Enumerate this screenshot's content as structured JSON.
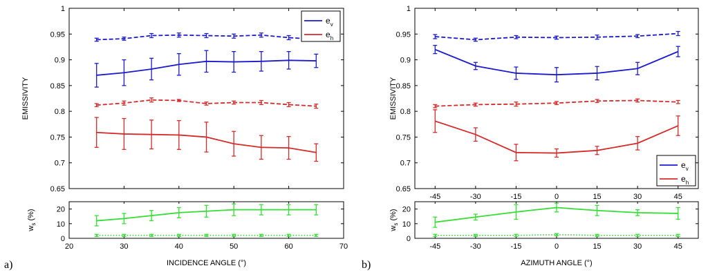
{
  "panel_labels": [
    "a)",
    "b)"
  ],
  "colors": {
    "ev": "#1a1acc",
    "eh": "#d42a2a",
    "ws": "#33dd33",
    "axis": "#000000"
  },
  "chart_data": [
    {
      "type": "line",
      "panel": "a",
      "xlabel": "INCIDENCE ANGLE (°)",
      "ylabel": "EMISSIVITY",
      "xlim": [
        20,
        70
      ],
      "ylim": [
        0.65,
        1
      ],
      "x_ticks": [
        20,
        30,
        40,
        50,
        60,
        70
      ],
      "x_tick_labels": [
        "20",
        "30",
        "40",
        "50",
        "60",
        "70"
      ],
      "y_ticks": [
        0.65,
        0.7,
        0.75,
        0.8,
        0.85,
        0.9,
        0.95,
        1
      ],
      "y_tick_labels": [
        "0.65",
        "0.7",
        "0.75",
        "0.8",
        "0.85",
        "0.9",
        "0.95",
        "1"
      ],
      "x": [
        25,
        30,
        35,
        40,
        45,
        50,
        55,
        60,
        65
      ],
      "legend": {
        "position": "top-right",
        "entries": [
          {
            "label": "e",
            "sub": "v",
            "series": "ev"
          },
          {
            "label": "e",
            "sub": "h",
            "series": "eh"
          }
        ]
      },
      "series": [
        {
          "name": "ev solid",
          "color_key": "ev",
          "style": "solid",
          "values": [
            0.87,
            0.875,
            0.882,
            0.891,
            0.897,
            0.896,
            0.897,
            0.899,
            0.898
          ],
          "err": [
            0.023,
            0.025,
            0.021,
            0.021,
            0.021,
            0.02,
            0.019,
            0.017,
            0.013
          ]
        },
        {
          "name": "ev dashed",
          "color_key": "ev",
          "style": "dashed",
          "values": [
            0.939,
            0.941,
            0.947,
            0.948,
            0.947,
            0.946,
            0.948,
            0.943,
            0.94
          ],
          "err": [
            0.003,
            0.003,
            0.004,
            0.004,
            0.004,
            0.004,
            0.004,
            0.004,
            0.003
          ]
        },
        {
          "name": "eh dashed",
          "color_key": "eh",
          "style": "dashed",
          "values": [
            0.812,
            0.816,
            0.822,
            0.821,
            0.815,
            0.817,
            0.817,
            0.813,
            0.81
          ],
          "err": [
            0.003,
            0.004,
            0.004,
            0.002,
            0.003,
            0.003,
            0.004,
            0.004,
            0.004
          ]
        },
        {
          "name": "eh solid",
          "color_key": "eh",
          "style": "solid",
          "values": [
            0.759,
            0.756,
            0.755,
            0.754,
            0.75,
            0.737,
            0.73,
            0.729,
            0.72
          ],
          "err": [
            0.029,
            0.03,
            0.028,
            0.028,
            0.029,
            0.024,
            0.023,
            0.022,
            0.017
          ]
        }
      ],
      "ws": {
        "ylabel": "w",
        "ylabel_sub": "s",
        "ylabel_suffix": " (%)",
        "ylim": [
          0,
          25
        ],
        "y_ticks": [
          0,
          10,
          20
        ],
        "y_tick_labels": [
          "0",
          "10",
          "20"
        ],
        "series": [
          {
            "name": "ws solid",
            "style": "solid",
            "values": [
              12,
              13.5,
              15.5,
              17.5,
              18.5,
              19.5,
              19.5,
              19.5,
              19.5
            ],
            "err": [
              3.5,
              3.5,
              3.5,
              3.5,
              4,
              4,
              3.5,
              3.5,
              3.5
            ]
          },
          {
            "name": "ws dotted",
            "style": "dotted",
            "values": [
              2,
              2,
              2,
              2,
              2,
              2,
              2,
              2,
              2
            ],
            "err": [
              0.7,
              0.7,
              0.7,
              0.7,
              0.7,
              0.7,
              0.7,
              0.7,
              0.7
            ]
          }
        ]
      }
    },
    {
      "type": "line",
      "panel": "b",
      "xlabel": "AZIMUTH ANGLE (°)",
      "ylabel": "EMISSIVITY",
      "xlim": [
        -52.5,
        52.5
      ],
      "ylim": [
        0.65,
        1
      ],
      "x_ticks": [
        -45,
        -30,
        -15,
        0,
        15,
        30,
        45
      ],
      "x_tick_labels": [
        "-45",
        "-30",
        "-15",
        "0",
        "15",
        "30",
        "45"
      ],
      "y_ticks": [
        0.65,
        0.7,
        0.75,
        0.8,
        0.85,
        0.9,
        0.95,
        1
      ],
      "y_tick_labels": [
        "0.65",
        "0.7",
        "0.75",
        "0.8",
        "0.85",
        "0.9",
        "0.95",
        "1"
      ],
      "x": [
        -45,
        -30,
        -15,
        0,
        15,
        30,
        45
      ],
      "legend": {
        "position": "bottom-right",
        "entries": [
          {
            "label": "e",
            "sub": "v",
            "series": "ev"
          },
          {
            "label": "e",
            "sub": "h",
            "series": "eh"
          }
        ]
      },
      "series": [
        {
          "name": "ev dashed",
          "color_key": "ev",
          "style": "dashed",
          "values": [
            0.945,
            0.939,
            0.944,
            0.943,
            0.944,
            0.946,
            0.951
          ],
          "err": [
            0.004,
            0.003,
            0.003,
            0.003,
            0.004,
            0.003,
            0.004
          ]
        },
        {
          "name": "ev solid",
          "color_key": "ev",
          "style": "solid",
          "values": [
            0.92,
            0.888,
            0.874,
            0.871,
            0.874,
            0.883,
            0.916
          ],
          "err": [
            0.008,
            0.007,
            0.012,
            0.014,
            0.013,
            0.012,
            0.01
          ]
        },
        {
          "name": "eh dashed",
          "color_key": "eh",
          "style": "dashed",
          "values": [
            0.81,
            0.813,
            0.814,
            0.816,
            0.82,
            0.821,
            0.818
          ],
          "err": [
            0.003,
            0.003,
            0.004,
            0.003,
            0.003,
            0.003,
            0.003
          ]
        },
        {
          "name": "eh solid",
          "color_key": "eh",
          "style": "solid",
          "values": [
            0.781,
            0.755,
            0.72,
            0.719,
            0.724,
            0.738,
            0.772
          ],
          "err": [
            0.022,
            0.013,
            0.016,
            0.008,
            0.008,
            0.013,
            0.019
          ]
        }
      ],
      "ws": {
        "ylabel": "w",
        "ylabel_sub": "s",
        "ylabel_suffix": " (%)",
        "ylim": [
          0,
          25
        ],
        "y_ticks": [
          0,
          10,
          20
        ],
        "y_tick_labels": [
          "0",
          "10",
          "20"
        ],
        "series": [
          {
            "name": "ws solid",
            "style": "solid",
            "values": [
              11,
              14.5,
              18,
              21,
              19,
              17.5,
              17
            ],
            "err": [
              3.5,
              2,
              5,
              3,
              3.5,
              2,
              4
            ]
          },
          {
            "name": "ws dotted",
            "style": "dotted",
            "values": [
              2,
              2,
              2,
              2.5,
              2,
              2,
              2
            ],
            "err": [
              0.7,
              0.7,
              0.7,
              0.7,
              0.7,
              0.7,
              0.7
            ]
          }
        ]
      }
    }
  ]
}
